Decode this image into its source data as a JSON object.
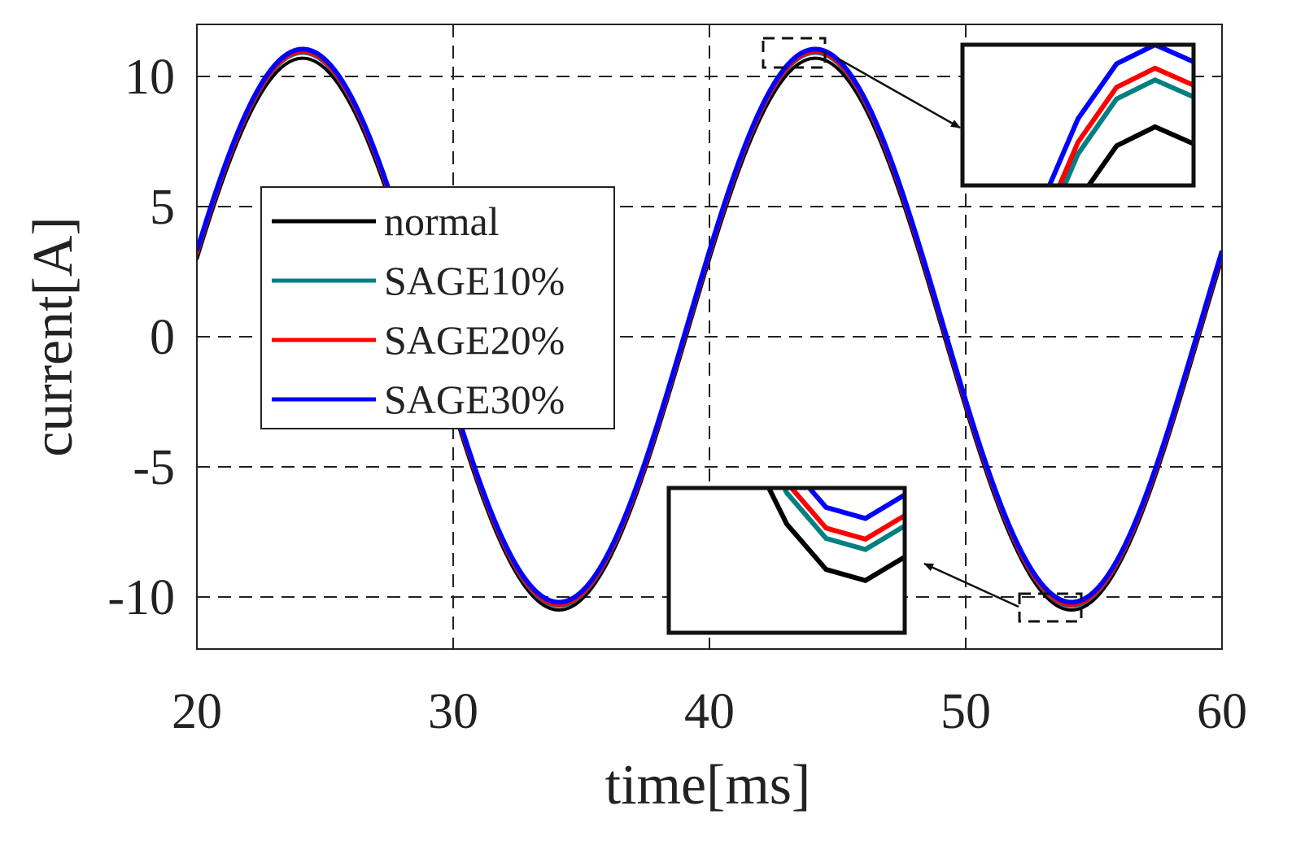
{
  "chart_data": {
    "type": "line",
    "title": "",
    "xlabel": "time[ms]",
    "ylabel": "current[A]",
    "xlim": [
      20,
      60
    ],
    "ylim": [
      -12,
      12
    ],
    "xticks": [
      20,
      30,
      40,
      50,
      60
    ],
    "yticks": [
      -10,
      -5,
      0,
      5,
      10
    ],
    "ytick_labels": [
      "-10",
      "-5",
      "0",
      "5",
      "10"
    ],
    "grid": true,
    "legend_position": "upper-left",
    "frequency_hz": 50,
    "series": [
      {
        "name": "normal",
        "color": "#000000",
        "amplitude": 10.7,
        "min": -10.5,
        "phase_deg": 15.7
      },
      {
        "name": "SAGE10%",
        "color": "#008080",
        "amplitude": 10.9,
        "min": -10.35,
        "phase_deg": 15.7
      },
      {
        "name": "SAGE20%",
        "color": "#ff0000",
        "amplitude": 10.95,
        "min": -10.3,
        "phase_deg": 15.7
      },
      {
        "name": "SAGE30%",
        "color": "#0000ff",
        "amplitude": 11.05,
        "min": -10.2,
        "phase_deg": 15.7
      }
    ],
    "insets": [
      {
        "name": "peak-zoom",
        "target": "peak near t=43.4 ms",
        "x_range": [
          42.2,
          44.5
        ],
        "y_range": [
          10.45,
          11.05
        ]
      },
      {
        "name": "trough-zoom",
        "target": "trough near t=53.4 ms",
        "x_range": [
          52.2,
          54.6
        ],
        "y_range": [
          -10.75,
          -10.05
        ]
      }
    ]
  }
}
